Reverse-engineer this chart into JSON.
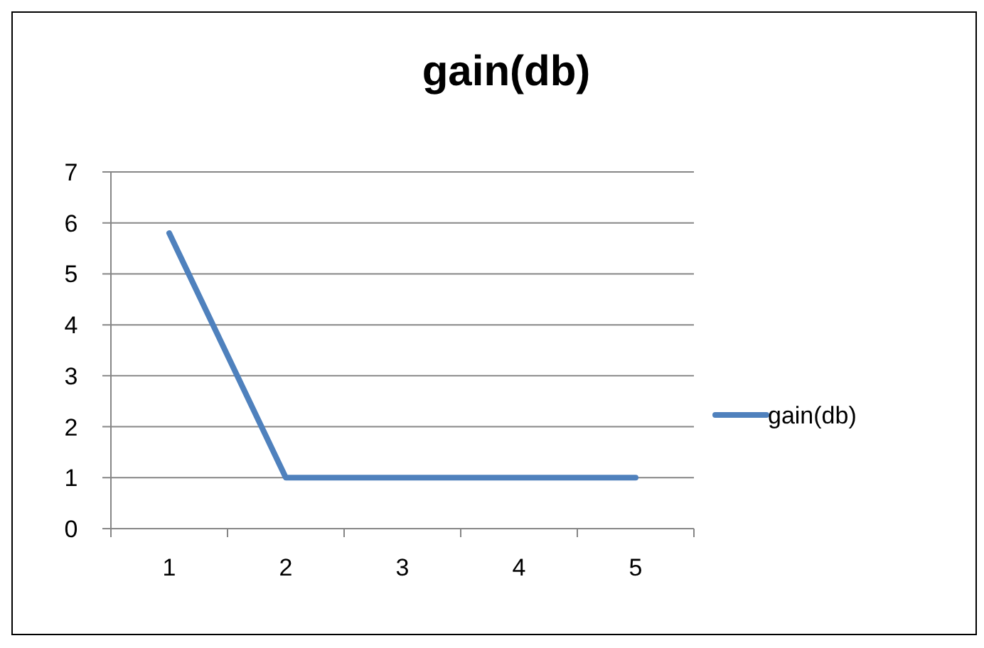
{
  "chart_data": {
    "type": "line",
    "title": "gain(db)",
    "categories": [
      "1",
      "2",
      "3",
      "4",
      "5"
    ],
    "series": [
      {
        "name": "gain(db)",
        "color": "#4f81bd",
        "values": [
          5.8,
          1,
          1,
          1,
          1
        ]
      }
    ],
    "ylim": [
      0,
      7
    ],
    "yticks": [
      0,
      1,
      2,
      3,
      4,
      5,
      6,
      7
    ],
    "grid": "y",
    "legend": "right"
  }
}
